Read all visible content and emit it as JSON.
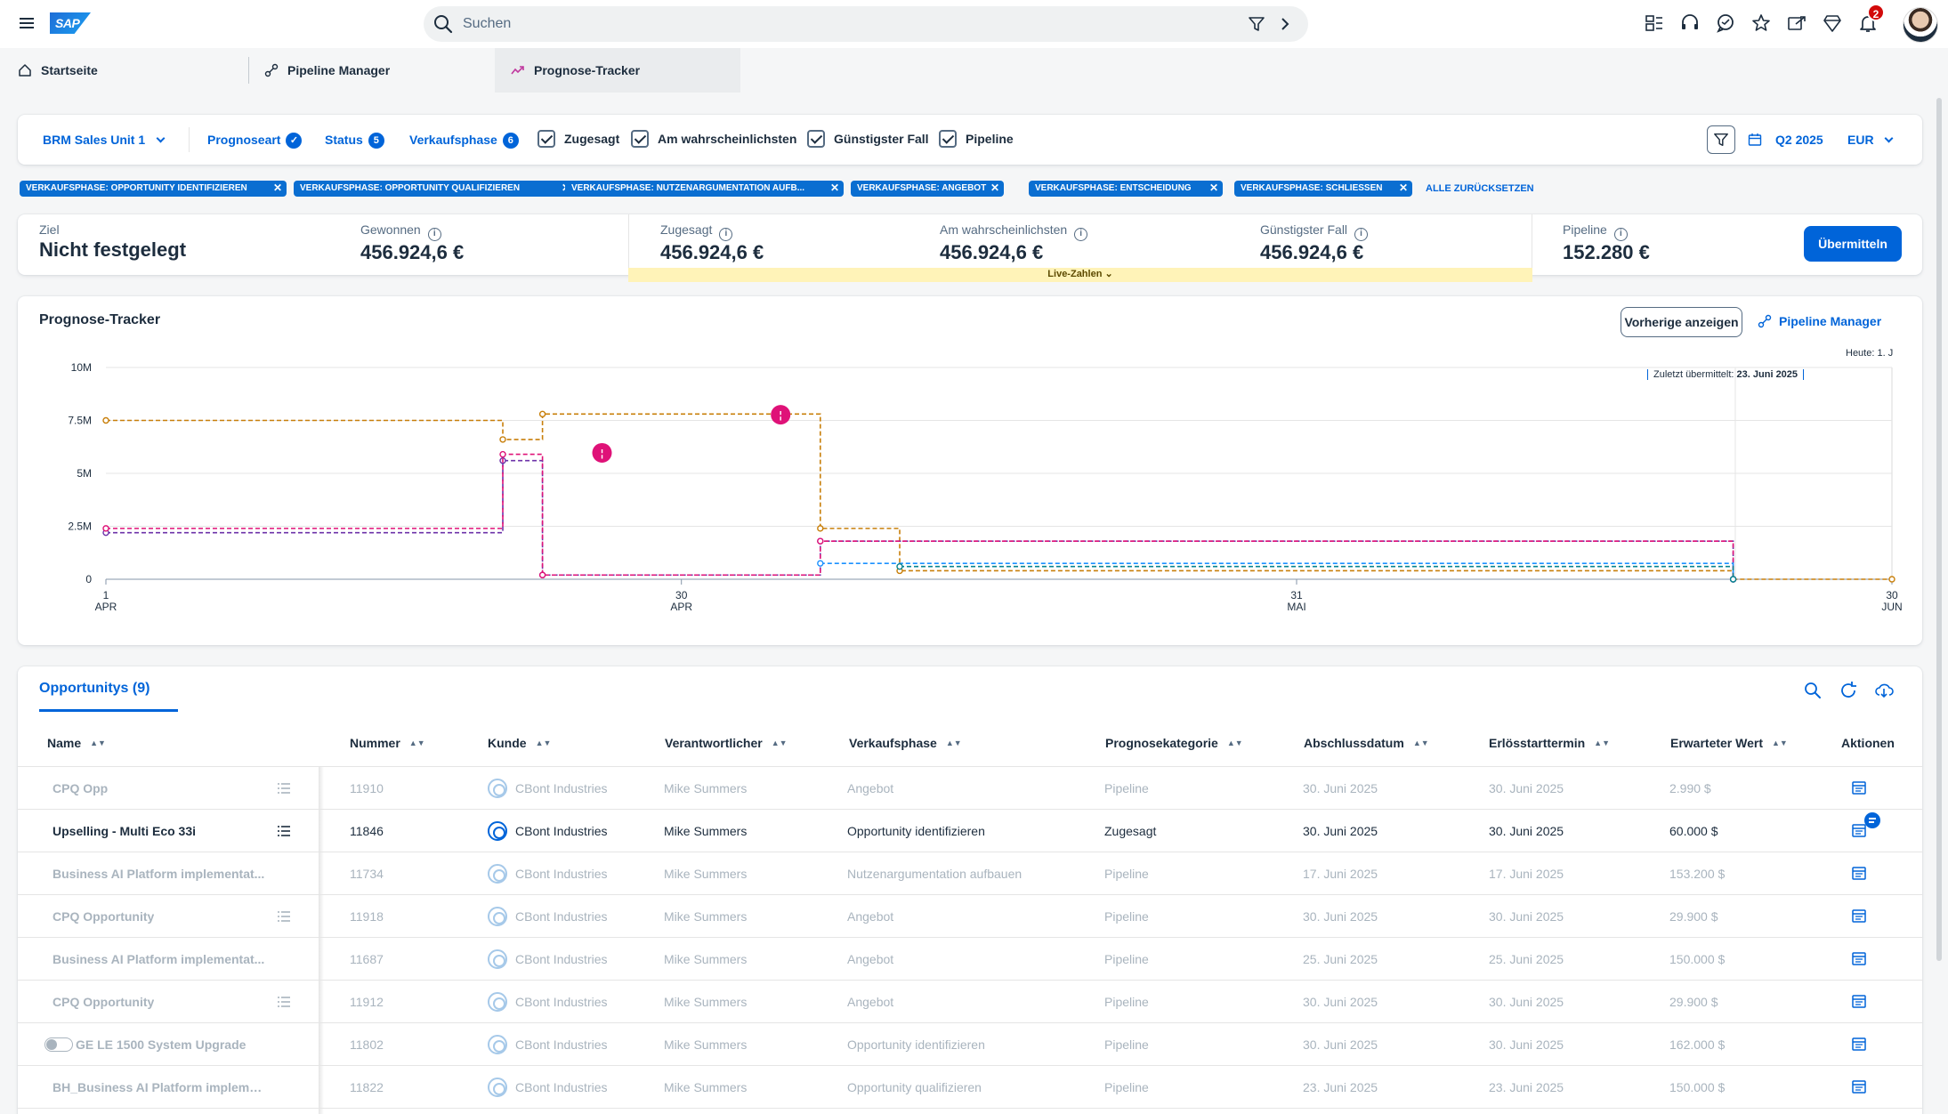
{
  "shell": {
    "logo": "SAP",
    "search_placeholder": "Suchen",
    "notification_count": "2",
    "icons": [
      "menu-icon",
      "search-icon",
      "filter-icon",
      "chevron-right-icon",
      "apps-icon",
      "support-icon",
      "chat-icon",
      "favorite-icon",
      "share-icon",
      "location-icon",
      "bell-icon"
    ]
  },
  "tabs": [
    {
      "label": "Startseite",
      "icon": "home-icon"
    },
    {
      "label": "Pipeline Manager",
      "icon": "pipeline-icon"
    },
    {
      "label": "Prognose-Tracker",
      "icon": "trend-icon"
    }
  ],
  "filterbar": {
    "sales_unit": "BRM Sales Unit 1",
    "prognoseart": "Prognoseart",
    "status": "Status",
    "status_count": "5",
    "verkaufsphase": "Verkaufsphase",
    "verkaufsphase_count": "6",
    "checks": [
      "Zugesagt",
      "Am wahrscheinlichsten",
      "Günstigster Fall",
      "Pipeline"
    ],
    "period": "Q2 2025",
    "currency": "EUR"
  },
  "chips": [
    "VERKAUFSPHASE: OPPORTUNITY IDENTIFIZIEREN",
    "VERKAUFSPHASE: OPPORTUNITY QUALIFIZIEREN",
    "VERKAUFSPHASE: NUTZENARGUMENTATION AUFB...",
    "VERKAUFSPHASE: ANGEBOT",
    "VERKAUFSPHASE: ENTSCHEIDUNG",
    "VERKAUFSPHASE: SCHLIESSEN"
  ],
  "reset_all": "ALLE ZURÜCKSETZEN",
  "kpis": {
    "ziel_label": "Ziel",
    "ziel_value": "Nicht festgelegt",
    "gewonnen_label": "Gewonnen",
    "gewonnen_value": "456.924,6 €",
    "zugesagt_label": "Zugesagt",
    "zugesagt_value": "456.924,6 €",
    "wahrscheinlich_label": "Am wahrscheinlichsten",
    "wahrscheinlich_value": "456.924,6 €",
    "guenstig_label": "Günstigster Fall",
    "guenstig_value": "456.924,6 €",
    "pipeline_label": "Pipeline",
    "pipeline_value": "152.280 €",
    "live_label": "Live-Zahlen",
    "submit_label": "Übermitteln"
  },
  "chart": {
    "title": "Prognose-Tracker",
    "prev_button": "Vorherige anzeigen",
    "pm_link": "Pipeline Manager",
    "today_label": "Heute: 1. J",
    "last_submitted": "Zuletzt übermittelt:",
    "last_submitted_date": "23. Juni 2025"
  },
  "chart_data": {
    "type": "line",
    "step": true,
    "x_ticks": [
      {
        "day": "1",
        "month": "APR"
      },
      {
        "day": "30",
        "month": "APR"
      },
      {
        "day": "31",
        "month": "MAI"
      },
      {
        "day": "30",
        "month": "JUN"
      }
    ],
    "y_ticks": [
      "0",
      "2.5M",
      "5M",
      "7.5M",
      "10M"
    ],
    "ylim": [
      0,
      10000000
    ],
    "series": [
      {
        "color": "#c87f0a",
        "points": [
          [
            "2025-04-01",
            7.5
          ],
          [
            "2025-04-21",
            7.5
          ],
          [
            "2025-04-21",
            6.6
          ],
          [
            "2025-04-23",
            6.6
          ],
          [
            "2025-04-23",
            7.8
          ],
          [
            "2025-05-07",
            7.8
          ],
          [
            "2025-05-07",
            2.4
          ],
          [
            "2025-05-11",
            2.4
          ],
          [
            "2025-05-11",
            0.4
          ],
          [
            "2025-06-22",
            0.4
          ],
          [
            "2025-06-22",
            0.0
          ],
          [
            "2025-06-30",
            0.0
          ]
        ]
      },
      {
        "color": "#6c32a9",
        "points": [
          [
            "2025-04-01",
            2.2
          ],
          [
            "2025-04-21",
            2.2
          ],
          [
            "2025-04-21",
            5.6
          ],
          [
            "2025-04-23",
            5.6
          ],
          [
            "2025-04-23",
            0.2
          ],
          [
            "2025-05-07",
            0.2
          ],
          [
            "2025-05-07",
            1.8
          ],
          [
            "2025-06-22",
            1.8
          ],
          [
            "2025-06-22",
            0.0
          ]
        ]
      },
      {
        "color": "#df1278",
        "points": [
          [
            "2025-04-01",
            2.4
          ],
          [
            "2025-04-21",
            2.4
          ],
          [
            "2025-04-21",
            5.9
          ],
          [
            "2025-04-23",
            5.9
          ],
          [
            "2025-04-23",
            0.2
          ],
          [
            "2025-05-07",
            0.2
          ],
          [
            "2025-05-07",
            1.8
          ],
          [
            "2025-06-22",
            1.8
          ],
          [
            "2025-06-22",
            0.0
          ]
        ]
      },
      {
        "color": "#1b90ff",
        "points": [
          [
            "2025-05-07",
            0.75
          ],
          [
            "2025-06-22",
            0.75
          ],
          [
            "2025-06-22",
            0.0
          ]
        ]
      },
      {
        "color": "#07838f",
        "points": [
          [
            "2025-05-11",
            0.6
          ],
          [
            "2025-06-22",
            0.6
          ],
          [
            "2025-06-22",
            0.0
          ]
        ]
      }
    ]
  },
  "table": {
    "tab_label": "Opportunitys (9)",
    "columns": [
      "Name",
      "Nummer",
      "Kunde",
      "Verantwortlicher",
      "Verkaufsphase",
      "Prognosekategorie",
      "Abschlussdatum",
      "Erlösstarttermin",
      "Erwarteter Wert",
      "Aktionen"
    ],
    "rows": [
      {
        "name": "CPQ Opp",
        "nummer": "11910",
        "kunde": "CBont Industries",
        "verantw": "Mike Summers",
        "phase": "Angebot",
        "kategorie": "Pipeline",
        "abschluss": "30. Juni 2025",
        "erloes": "30. Juni 2025",
        "wert": "2.990 $"
      },
      {
        "name": "Upselling - Multi Eco 33i",
        "nummer": "11846",
        "kunde": "CBont Industries",
        "verantw": "Mike Summers",
        "phase": "Opportunity identifizieren",
        "kategorie": "Zugesagt",
        "abschluss": "30. Juni 2025",
        "erloes": "30. Juni 2025",
        "wert": "60.000 $"
      },
      {
        "name": "Business AI Platform implementat...",
        "nummer": "11734",
        "kunde": "CBont Industries",
        "verantw": "Mike Summers",
        "phase": "Nutzenargumentation aufbauen",
        "kategorie": "Pipeline",
        "abschluss": "17. Juni 2025",
        "erloes": "17. Juni 2025",
        "wert": "153.200 $"
      },
      {
        "name": "CPQ Opportunity",
        "nummer": "11918",
        "kunde": "CBont Industries",
        "verantw": "Mike Summers",
        "phase": "Angebot",
        "kategorie": "Pipeline",
        "abschluss": "30. Juni 2025",
        "erloes": "30. Juni 2025",
        "wert": "29.900 $"
      },
      {
        "name": "Business AI Platform implementat...",
        "nummer": "11687",
        "kunde": "CBont Industries",
        "verantw": "Mike Summers",
        "phase": "Angebot",
        "kategorie": "Pipeline",
        "abschluss": "25. Juni 2025",
        "erloes": "25. Juni 2025",
        "wert": "150.000 $"
      },
      {
        "name": "CPQ Opportunity",
        "nummer": "11912",
        "kunde": "CBont Industries",
        "verantw": "Mike Summers",
        "phase": "Angebot",
        "kategorie": "Pipeline",
        "abschluss": "30. Juni 2025",
        "erloes": "30. Juni 2025",
        "wert": "29.900 $"
      },
      {
        "name": "GE LE 1500 System Upgrade",
        "nummer": "11802",
        "kunde": "CBont Industries",
        "verantw": "Mike Summers",
        "phase": "Opportunity identifizieren",
        "kategorie": "Pipeline",
        "abschluss": "30. Juni 2025",
        "erloes": "30. Juni 2025",
        "wert": "162.000 $"
      },
      {
        "name": "BH_Business AI Platform impleme...",
        "nummer": "11822",
        "kunde": "CBont Industries",
        "verantw": "Mike Summers",
        "phase": "Opportunity qualifizieren",
        "kategorie": "Pipeline",
        "abschluss": "23. Juni 2025",
        "erloes": "23. Juni 2025",
        "wert": "150.000 $"
      }
    ]
  }
}
